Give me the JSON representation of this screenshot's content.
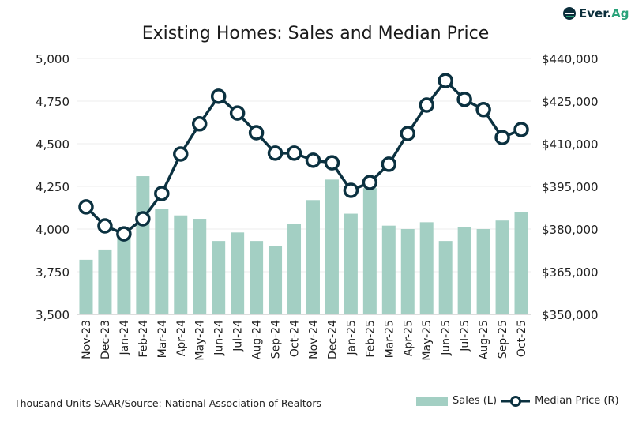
{
  "chart_data": {
    "type": "bar+line",
    "title": "Existing Homes: Sales and Median Price",
    "categories": [
      "Nov-23",
      "Dec-23",
      "Jan-24",
      "Feb-24",
      "Mar-24",
      "Apr-24",
      "May-24",
      "Jun-24",
      "Jul-24",
      "Aug-24",
      "Sep-24",
      "Oct-24",
      "Nov-24",
      "Dec-24",
      "Jan-25",
      "Feb-25",
      "Mar-25",
      "Apr-25",
      "May-25",
      "Jun-25",
      "Jul-25",
      "Aug-25",
      "Sep-25",
      "Oct-25"
    ],
    "series": [
      {
        "name": "Sales (L)",
        "type": "bar",
        "axis": "left",
        "color": "#a3cfc3",
        "values": [
          3820,
          3880,
          3955,
          4310,
          4120,
          4080,
          4060,
          3930,
          3980,
          3930,
          3900,
          4030,
          4170,
          4290,
          4090,
          4240,
          4020,
          4000,
          4040,
          3930,
          4010,
          4000,
          4050,
          4100
        ]
      },
      {
        "name": "Median Price (R)",
        "type": "line",
        "axis": "right",
        "color": "#0b3140",
        "values": [
          387800,
          381100,
          378300,
          383600,
          392500,
          406400,
          417000,
          426700,
          420800,
          413900,
          406700,
          406700,
          404200,
          403300,
          393600,
          396400,
          402800,
          413600,
          423600,
          432200,
          425600,
          422000,
          412200,
          415000
        ]
      }
    ],
    "left_axis": {
      "range": [
        3500,
        5000
      ],
      "ticks": [
        "3,500",
        "3,750",
        "4,000",
        "4,250",
        "4,500",
        "4,750",
        "5,000"
      ]
    },
    "right_axis": {
      "range": [
        350000,
        440000
      ],
      "ticks": [
        "$350,000",
        "$365,000",
        "$380,000",
        "$395,000",
        "$410,000",
        "$425,000",
        "$440,000"
      ]
    },
    "grid": true,
    "legend_position": "bottom-right"
  },
  "footer": "Thousand Units SAAR/Source: National Association of Realtors",
  "logo": {
    "part1": "Ever.",
    "part2": "Ag"
  }
}
